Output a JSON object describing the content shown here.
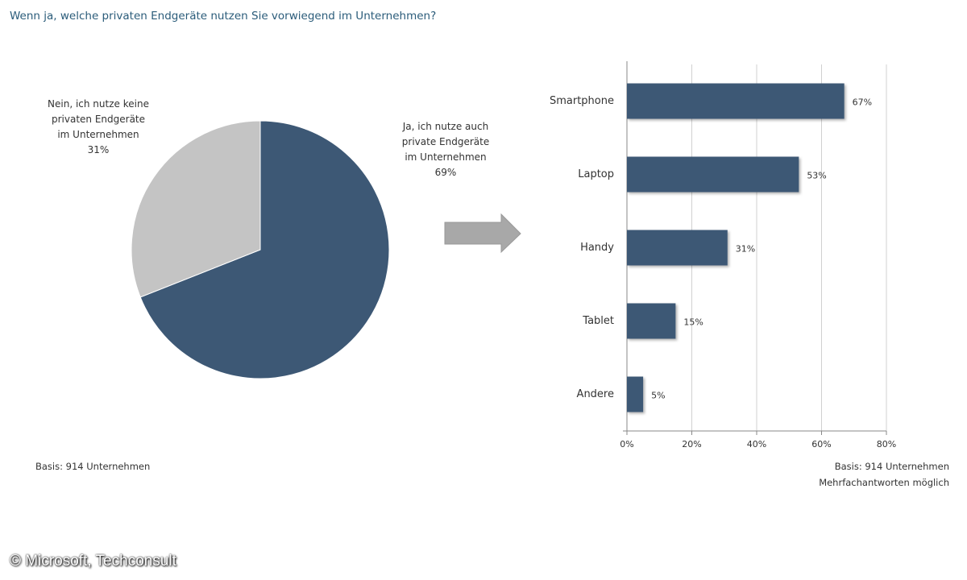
{
  "question": "Wenn ja, welche privaten Endgeräte nutzen Sie vorwiegend im Unternehmen?",
  "chart_data": [
    {
      "type": "pie",
      "categories": [
        "Ja, ich nutze auch private Endgeräte im Unternehmen",
        "Nein, ich nutze keine privaten Endgeräte im Unternehmen"
      ],
      "values": [
        69,
        31
      ],
      "value_labels": [
        "69%",
        "31%"
      ],
      "colors": [
        "#3d5875",
        "#c4c4c4"
      ],
      "note": "Basis: 914 Unternehmen"
    },
    {
      "type": "bar",
      "orientation": "horizontal",
      "categories": [
        "Smartphone",
        "Laptop",
        "Handy",
        "Tablet",
        "Andere"
      ],
      "values": [
        67,
        53,
        31,
        15,
        5
      ],
      "value_labels": [
        "67%",
        "53%",
        "31%",
        "15%",
        "5%"
      ],
      "color": "#3d5875",
      "xlim": [
        0,
        80
      ],
      "xticks": [
        {
          "value": 0,
          "label": "0%"
        },
        {
          "value": 20,
          "label": "20%"
        },
        {
          "value": 40,
          "label": "40%"
        },
        {
          "value": 60,
          "label": "60%"
        },
        {
          "value": 80,
          "label": "80%"
        }
      ],
      "grid": true,
      "notes": [
        "Basis: 914 Unternehmen",
        "Mehrfachantworten möglich"
      ]
    }
  ],
  "credit": "© Microsoft, Techconsult"
}
